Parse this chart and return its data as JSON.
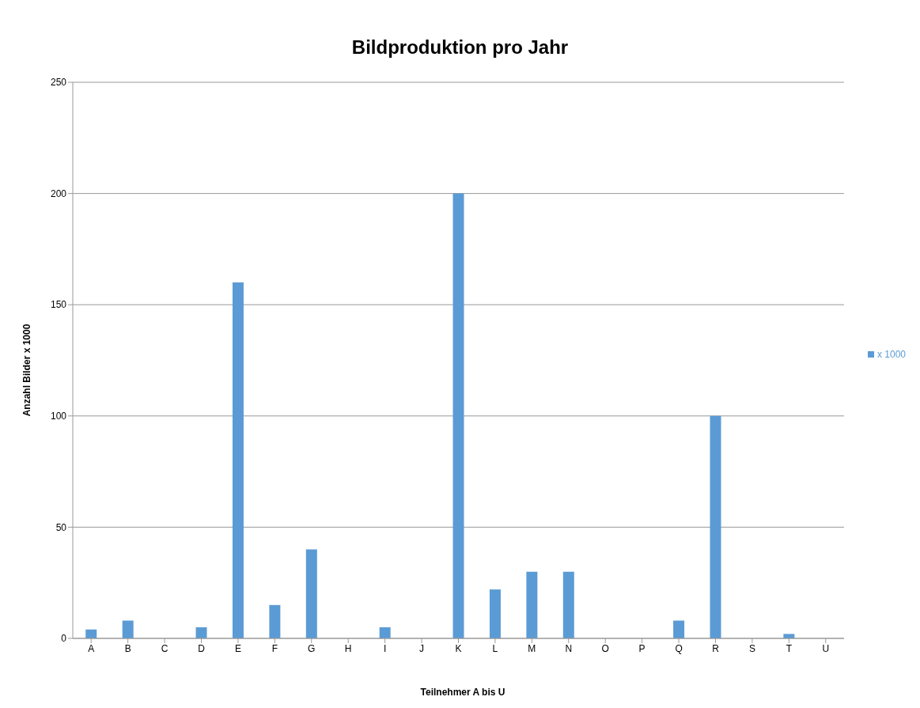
{
  "chart_data": {
    "type": "bar",
    "title": "Bildproduktion pro Jahr",
    "xlabel": "Teilnehmer A bis U",
    "ylabel": "Anzahl Bilder x 1000",
    "categories": [
      "A",
      "B",
      "C",
      "D",
      "E",
      "F",
      "G",
      "H",
      "I",
      "J",
      "K",
      "L",
      "M",
      "N",
      "O",
      "P",
      "Q",
      "R",
      "S",
      "T",
      "U"
    ],
    "series": [
      {
        "name": "x 1000",
        "color": "#5b9bd5",
        "values": [
          4,
          8,
          0,
          5,
          160,
          15,
          40,
          0,
          5,
          0,
          200,
          22,
          30,
          30,
          0,
          0,
          8,
          100,
          0,
          2,
          0
        ]
      }
    ],
    "ylim": [
      0,
      250
    ],
    "yticks": [
      0,
      50,
      100,
      150,
      200,
      250
    ],
    "grid": "y",
    "legend": "right"
  }
}
